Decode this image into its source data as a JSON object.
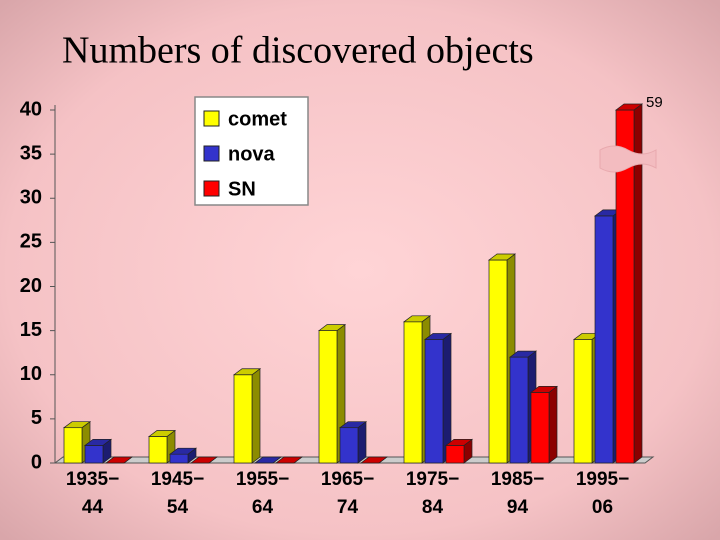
{
  "chart_data": {
    "type": "bar3d",
    "title": "Numbers of discovered objects",
    "categories": [
      [
        "1935−",
        "44"
      ],
      [
        "1945−",
        "54"
      ],
      [
        "1955−",
        "64"
      ],
      [
        "1965−",
        "74"
      ],
      [
        "1975−",
        "84"
      ],
      [
        "1985−",
        "94"
      ],
      [
        "1995−",
        "06"
      ]
    ],
    "series": [
      {
        "name": "comet",
        "color": "#ffff00",
        "values": [
          4,
          3,
          10,
          15,
          16,
          23,
          14
        ]
      },
      {
        "name": "nova",
        "color": "#3333cc",
        "values": [
          2,
          1,
          0,
          4,
          14,
          12,
          28
        ]
      },
      {
        "name": "SN",
        "color": "#ff0000",
        "values": [
          0,
          0,
          0,
          0,
          2,
          8,
          59
        ],
        "value_labels": [
          null,
          null,
          null,
          null,
          null,
          null,
          "59"
        ]
      }
    ],
    "ylim": [
      0,
      40
    ],
    "yticks": [
      0,
      5,
      10,
      15,
      20,
      25,
      30,
      35,
      40
    ],
    "grid": false,
    "legend": "top-left"
  }
}
